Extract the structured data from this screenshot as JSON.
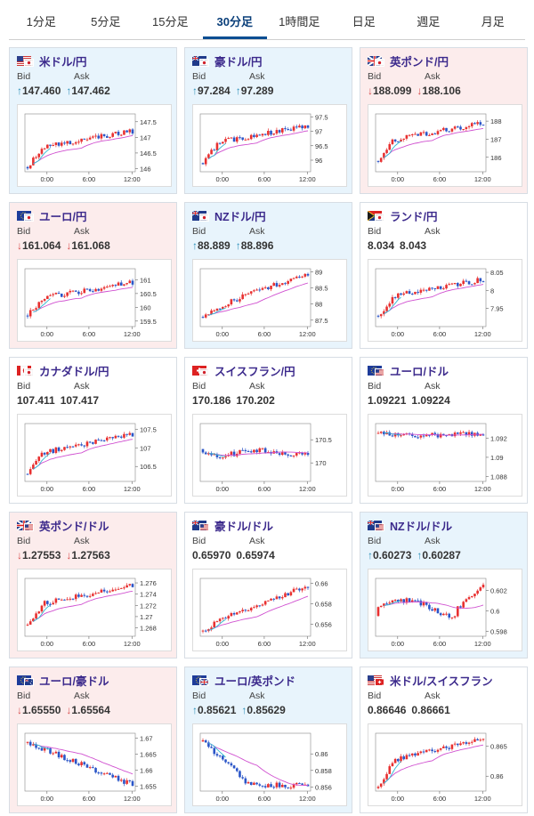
{
  "tabs": [
    {
      "label": "1分足",
      "active": false
    },
    {
      "label": "5分足",
      "active": false
    },
    {
      "label": "15分足",
      "active": false
    },
    {
      "label": "30分足",
      "active": true
    },
    {
      "label": "1時間足",
      "active": false
    },
    {
      "label": "日足",
      "active": false
    },
    {
      "label": "週足",
      "active": false
    },
    {
      "label": "月足",
      "active": false
    }
  ],
  "labels": {
    "bid": "Bid",
    "ask": "Ask"
  },
  "colors": {
    "up_bg": "#e8f4fc",
    "down_bg": "#fcecec",
    "up_candle": "#e83030",
    "down_candle": "#2a55c8",
    "ma_long": "#d050d0",
    "ma_short": "#30b8d0"
  },
  "pairs": [
    {
      "name": "米ドル/円",
      "flags": [
        "us",
        "jp"
      ],
      "direction": "up",
      "bid": "147.460",
      "ask": "147.462",
      "chart_data": {
        "type": "candlestick",
        "x_ticks": [
          "0:00",
          "6:00",
          "12:00"
        ],
        "y_ticks": [
          146,
          146.5,
          147,
          147.5
        ],
        "ylim": [
          145.9,
          147.75
        ],
        "start": 146.05,
        "end": 147.2,
        "shape": "rise_plateau"
      }
    },
    {
      "name": "豪ドル/円",
      "flags": [
        "au",
        "jp"
      ],
      "direction": "up",
      "bid": "97.284",
      "ask": "97.289",
      "chart_data": {
        "type": "candlestick",
        "x_ticks": [
          "0:00",
          "6:00",
          "12:00"
        ],
        "y_ticks": [
          96,
          96.5,
          97,
          97.5
        ],
        "ylim": [
          95.6,
          97.6
        ],
        "start": 95.9,
        "end": 97.2,
        "shape": "rise_plateau"
      }
    },
    {
      "name": "英ポンド/円",
      "flags": [
        "uk",
        "jp"
      ],
      "direction": "down",
      "bid": "188.099",
      "ask": "188.106",
      "chart_data": {
        "type": "candlestick",
        "x_ticks": [
          "0:00",
          "6:00",
          "12:00"
        ],
        "y_ticks": [
          186,
          187,
          188
        ],
        "ylim": [
          185.2,
          188.4
        ],
        "start": 185.8,
        "end": 187.9,
        "shape": "rise_plateau"
      }
    },
    {
      "name": "ユーロ/円",
      "flags": [
        "eu",
        "jp"
      ],
      "direction": "down",
      "bid": "161.064",
      "ask": "161.068",
      "chart_data": {
        "type": "candlestick",
        "x_ticks": [
          "0:00",
          "6:00",
          "12:00"
        ],
        "y_ticks": [
          159.5,
          160,
          160.5,
          161
        ],
        "ylim": [
          159.3,
          161.4
        ],
        "start": 159.7,
        "end": 160.9,
        "shape": "rise_plateau"
      }
    },
    {
      "name": "NZドル/円",
      "flags": [
        "nz",
        "jp"
      ],
      "direction": "up",
      "bid": "88.889",
      "ask": "88.896",
      "chart_data": {
        "type": "candlestick",
        "x_ticks": [
          "0:00",
          "6:00",
          "12:00"
        ],
        "y_ticks": [
          87.5,
          88,
          88.5,
          89
        ],
        "ylim": [
          87.3,
          89.1
        ],
        "start": 87.6,
        "end": 88.95,
        "shape": "rise_steady"
      }
    },
    {
      "name": "ランド/円",
      "flags": [
        "za",
        "jp"
      ],
      "direction": "flat",
      "bid": "8.034",
      "ask": "8.043",
      "chart_data": {
        "type": "candlestick",
        "x_ticks": [
          "0:00",
          "6:00",
          "12:00"
        ],
        "y_ticks": [
          7.95,
          8,
          8.05
        ],
        "ylim": [
          7.9,
          8.06
        ],
        "start": 7.93,
        "end": 8.03,
        "shape": "rise_plateau"
      }
    },
    {
      "name": "カナダドル/円",
      "flags": [
        "ca",
        "jp"
      ],
      "direction": "flat",
      "bid": "107.411",
      "ask": "107.417",
      "chart_data": {
        "type": "candlestick",
        "x_ticks": [
          "0:00",
          "6:00",
          "12:00"
        ],
        "y_ticks": [
          106.5,
          107,
          107.5
        ],
        "ylim": [
          106.1,
          107.65
        ],
        "start": 106.3,
        "end": 107.35,
        "shape": "rise_plateau"
      }
    },
    {
      "name": "スイスフラン/円",
      "flags": [
        "ch",
        "jp"
      ],
      "direction": "flat",
      "bid": "170.186",
      "ask": "170.202",
      "chart_data": {
        "type": "candlestick",
        "x_ticks": [
          "0:00",
          "6:00",
          "12:00"
        ],
        "y_ticks": [
          170,
          170.5
        ],
        "ylim": [
          169.6,
          170.85
        ],
        "start": 170.3,
        "end": 170.15,
        "shape": "volatile"
      }
    },
    {
      "name": "ユーロ/ドル",
      "flags": [
        "eu",
        "us"
      ],
      "direction": "flat",
      "bid": "1.09221",
      "ask": "1.09224",
      "chart_data": {
        "type": "candlestick",
        "x_ticks": [
          "0:00",
          "6:00",
          "12:00"
        ],
        "y_ticks": [
          1.088,
          1.09,
          1.092
        ],
        "ylim": [
          1.0875,
          1.0935
        ],
        "start": 1.0925,
        "end": 1.0922,
        "shape": "dip_recover"
      }
    },
    {
      "name": "英ポンド/ドル",
      "flags": [
        "uk",
        "us"
      ],
      "direction": "down",
      "bid": "1.27553",
      "ask": "1.27563",
      "chart_data": {
        "type": "candlestick",
        "x_ticks": [
          "0:00",
          "6:00",
          "12:00"
        ],
        "y_ticks": [
          1.268,
          1.27,
          1.272,
          1.274,
          1.276
        ],
        "ylim": [
          1.2665,
          1.2768
        ],
        "start": 1.2685,
        "end": 1.2755,
        "shape": "rise_plateau"
      }
    },
    {
      "name": "豪ドル/ドル",
      "flags": [
        "au",
        "us"
      ],
      "direction": "flat",
      "bid": "0.65970",
      "ask": "0.65974",
      "chart_data": {
        "type": "candlestick",
        "x_ticks": [
          "0:00",
          "6:00",
          "12:00"
        ],
        "y_ticks": [
          0.656,
          0.658,
          0.66
        ],
        "ylim": [
          0.6548,
          0.6605
        ],
        "start": 0.6553,
        "end": 0.6597,
        "shape": "rise_steady"
      }
    },
    {
      "name": "NZドル/ドル",
      "flags": [
        "nz",
        "us"
      ],
      "direction": "up",
      "bid": "0.60273",
      "ask": "0.60287",
      "chart_data": {
        "type": "candlestick",
        "x_ticks": [
          "0:00",
          "6:00",
          "12:00"
        ],
        "y_ticks": [
          0.598,
          0.6,
          0.602
        ],
        "ylim": [
          0.5975,
          0.6032
        ],
        "start": 0.5995,
        "end": 0.6027,
        "shape": "late_rise"
      }
    },
    {
      "name": "ユーロ/豪ドル",
      "flags": [
        "eu",
        "au"
      ],
      "direction": "down",
      "bid": "1.65550",
      "ask": "1.65564",
      "chart_data": {
        "type": "candlestick",
        "x_ticks": [
          "0:00",
          "6:00",
          "12:00"
        ],
        "y_ticks": [
          1.655,
          1.66,
          1.665,
          1.67
        ],
        "ylim": [
          1.6535,
          1.6715
        ],
        "start": 1.6685,
        "end": 1.6555,
        "shape": "fall"
      }
    },
    {
      "name": "ユーロ/英ポンド",
      "flags": [
        "eu",
        "uk"
      ],
      "direction": "up",
      "bid": "0.85621",
      "ask": "0.85629",
      "chart_data": {
        "type": "candlestick",
        "x_ticks": [
          "0:00",
          "6:00",
          "12:00"
        ],
        "y_ticks": [
          0.856,
          0.858,
          0.86
        ],
        "ylim": [
          0.8555,
          0.8625
        ],
        "start": 0.8615,
        "end": 0.8562,
        "shape": "fall_flat"
      }
    },
    {
      "name": "米ドル/スイスフラン",
      "flags": [
        "us",
        "ch"
      ],
      "direction": "flat",
      "bid": "0.86646",
      "ask": "0.86661",
      "chart_data": {
        "type": "candlestick",
        "x_ticks": [
          "0:00",
          "6:00",
          "12:00"
        ],
        "y_ticks": [
          0.86,
          0.865
        ],
        "ylim": [
          0.8575,
          0.8672
        ],
        "start": 0.858,
        "end": 0.8664,
        "shape": "rise_plateau"
      }
    }
  ]
}
